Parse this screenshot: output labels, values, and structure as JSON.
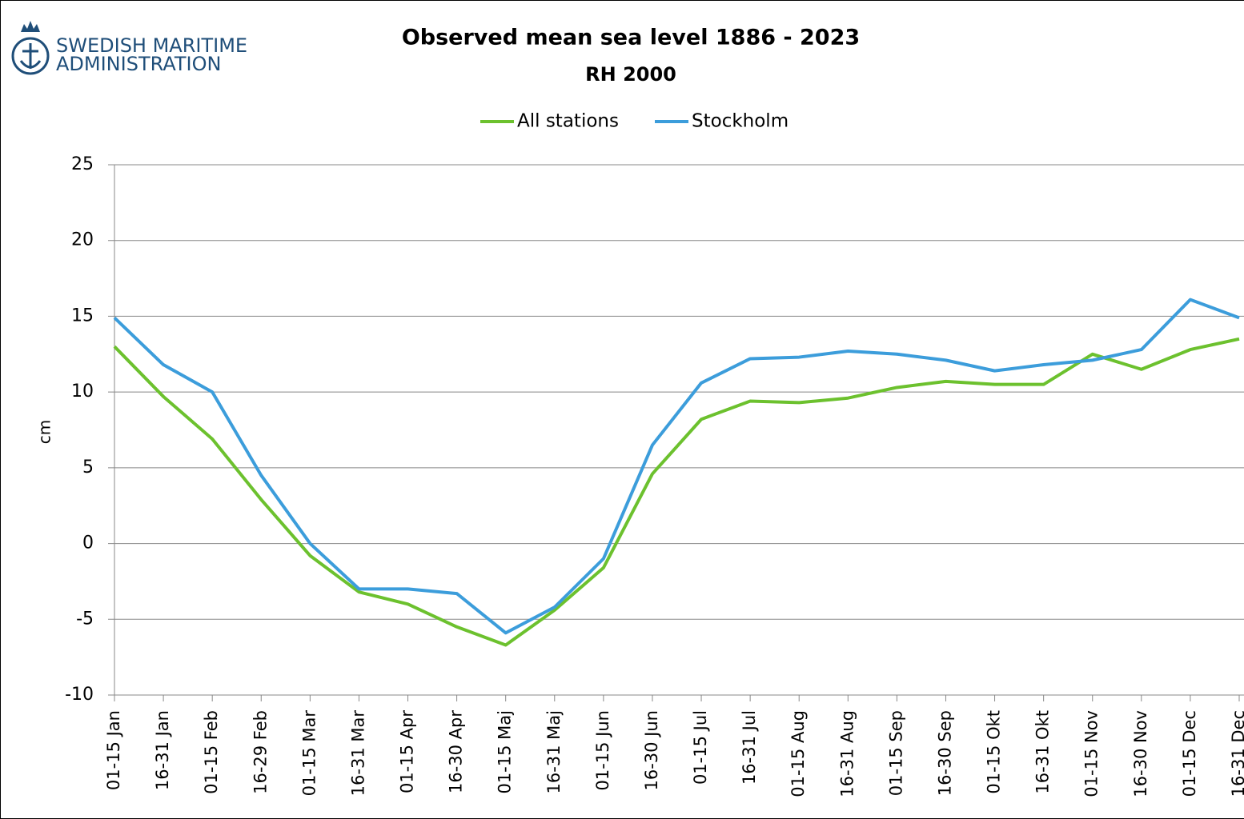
{
  "logo": {
    "line1": "SWEDISH MARITIME",
    "line2": "ADMINISTRATION"
  },
  "chart_data": {
    "type": "line",
    "title": "Observed mean sea level 1886 - 2023",
    "subtitle": "RH 2000",
    "y_label": "cm",
    "categories": [
      "01-15 Jan",
      "16-31 Jan",
      "01-15 Feb",
      "16-29 Feb",
      "01-15 Mar",
      "16-31 Mar",
      "01-15 Apr",
      "16-30 Apr",
      "01-15 Maj",
      "16-31 Maj",
      "01-15 Jun",
      "16-30 Jun",
      "01-15 Jul",
      "16-31 Jul",
      "01-15 Aug",
      "16-31 Aug",
      "01-15 Sep",
      "16-30 Sep",
      "01-15 Okt",
      "16-31 Okt",
      "01-15 Nov",
      "16-30 Nov",
      "01-15 Dec",
      "16-31 Dec"
    ],
    "series": [
      {
        "name": "All stations",
        "color": "#6cc12e",
        "values": [
          13.0,
          9.7,
          6.9,
          2.9,
          -0.8,
          -3.2,
          -4.0,
          -5.5,
          -6.7,
          -4.4,
          -1.6,
          4.6,
          8.2,
          9.4,
          9.3,
          9.6,
          10.3,
          10.7,
          10.5,
          10.5,
          12.5,
          11.5,
          12.8,
          13.5
        ]
      },
      {
        "name": "Stockholm",
        "color": "#3c9ddb",
        "values": [
          14.9,
          11.8,
          10.0,
          4.5,
          0.0,
          -3.0,
          -3.0,
          -3.3,
          -5.9,
          -4.2,
          -1.0,
          6.5,
          10.6,
          12.2,
          12.3,
          12.7,
          12.5,
          12.1,
          11.4,
          11.8,
          12.1,
          12.8,
          16.1,
          14.9
        ]
      }
    ],
    "ylim": [
      -10,
      25
    ],
    "yticks": [
      -10,
      -5,
      0,
      5,
      10,
      15,
      20,
      25
    ],
    "grid": true,
    "legend": "top"
  }
}
